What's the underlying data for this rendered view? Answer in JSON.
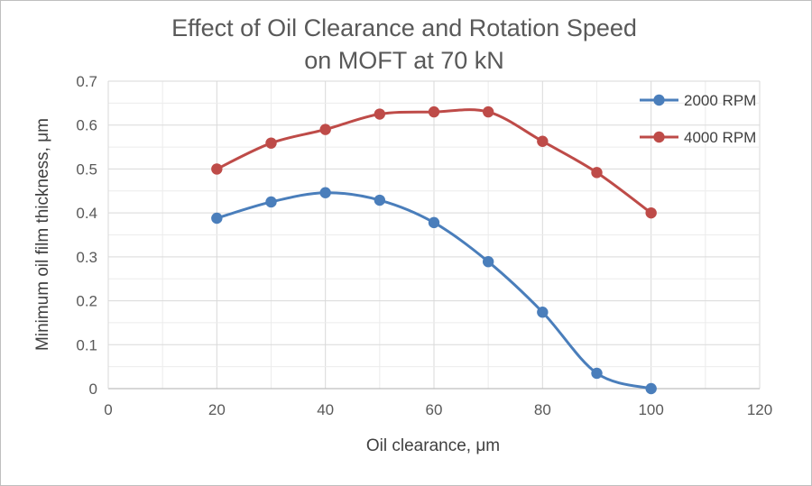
{
  "chart_data": {
    "type": "line",
    "title": "Effect of Oil Clearance and Rotation Speed on MOFT at 70 kN",
    "title_lines": [
      "Effect of Oil Clearance and Rotation Speed",
      "on MOFT at 70 kN"
    ],
    "xlabel": "Oil clearance, μm",
    "ylabel": "Minimum oil film thickness, μm",
    "xlim": [
      0,
      120
    ],
    "ylim": [
      0,
      0.7
    ],
    "xticks": [
      "0",
      "20",
      "40",
      "60",
      "80",
      "100",
      "120"
    ],
    "yticks": [
      "0",
      "0.1",
      "0.2",
      "0.3",
      "0.4",
      "0.5",
      "0.6",
      "0.7"
    ],
    "grid": true,
    "smooth": true,
    "legend_position": "top-right",
    "series": [
      {
        "name": "2000 RPM",
        "color": "#4a7ebb",
        "x": [
          20,
          30,
          40,
          50,
          60,
          70,
          80,
          90,
          100
        ],
        "y": [
          0.388,
          0.425,
          0.446,
          0.429,
          0.378,
          0.289,
          0.174,
          0.035,
          0.0
        ]
      },
      {
        "name": "4000 RPM",
        "color": "#be4b48",
        "x": [
          20,
          30,
          40,
          50,
          60,
          70,
          80,
          90,
          100
        ],
        "y": [
          0.5,
          0.559,
          0.59,
          0.625,
          0.63,
          0.63,
          0.563,
          0.492,
          0.4
        ]
      }
    ]
  }
}
